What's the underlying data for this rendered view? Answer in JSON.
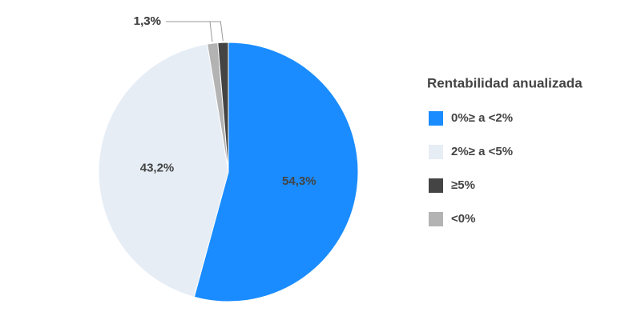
{
  "chart_data": {
    "type": "pie",
    "legend_title": "Rentabilidad anualizada",
    "legend_position": "right",
    "categories": [
      "0%≥ a <2%",
      "2%≥ a <5%",
      "≥5%",
      "<0%"
    ],
    "values": [
      54.3,
      43.2,
      1.3,
      1.3
    ],
    "value_labels": [
      "54,3%",
      "43,2%",
      "1,3%",
      "1,3%"
    ],
    "colors": [
      "#1a8cff",
      "#e6edf5",
      "#444444",
      "#b3b3b3"
    ]
  }
}
